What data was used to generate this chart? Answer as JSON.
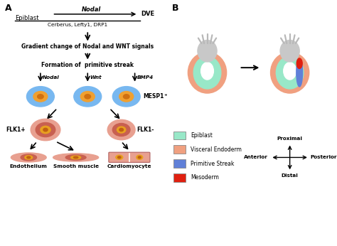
{
  "bg_color": "#ffffff",
  "epiblast_color": "#98e8c8",
  "visceral_color": "#f0a080",
  "primitive_streak_color": "#6080d8",
  "mesoderm_color": "#e02010",
  "embryo_gray_color": "#c8c8c8",
  "legend_items": [
    {
      "label": "Epiblast",
      "color": "#98e8c8"
    },
    {
      "label": "Visceral Endoderm",
      "color": "#f0a080"
    },
    {
      "label": "Primitive Streak",
      "color": "#6080d8"
    },
    {
      "label": "Mesoderm",
      "color": "#e02010"
    }
  ],
  "blue_cell_fill": "#78b8f0",
  "blue_cell_nucleus": "#f0a030",
  "blue_cell_dot": "#d07010",
  "red_cell_outer": "#e8a090",
  "red_cell_mid": "#c86050",
  "red_cell_nucleus": "#e8a020",
  "red_cell_dot": "#c06010"
}
